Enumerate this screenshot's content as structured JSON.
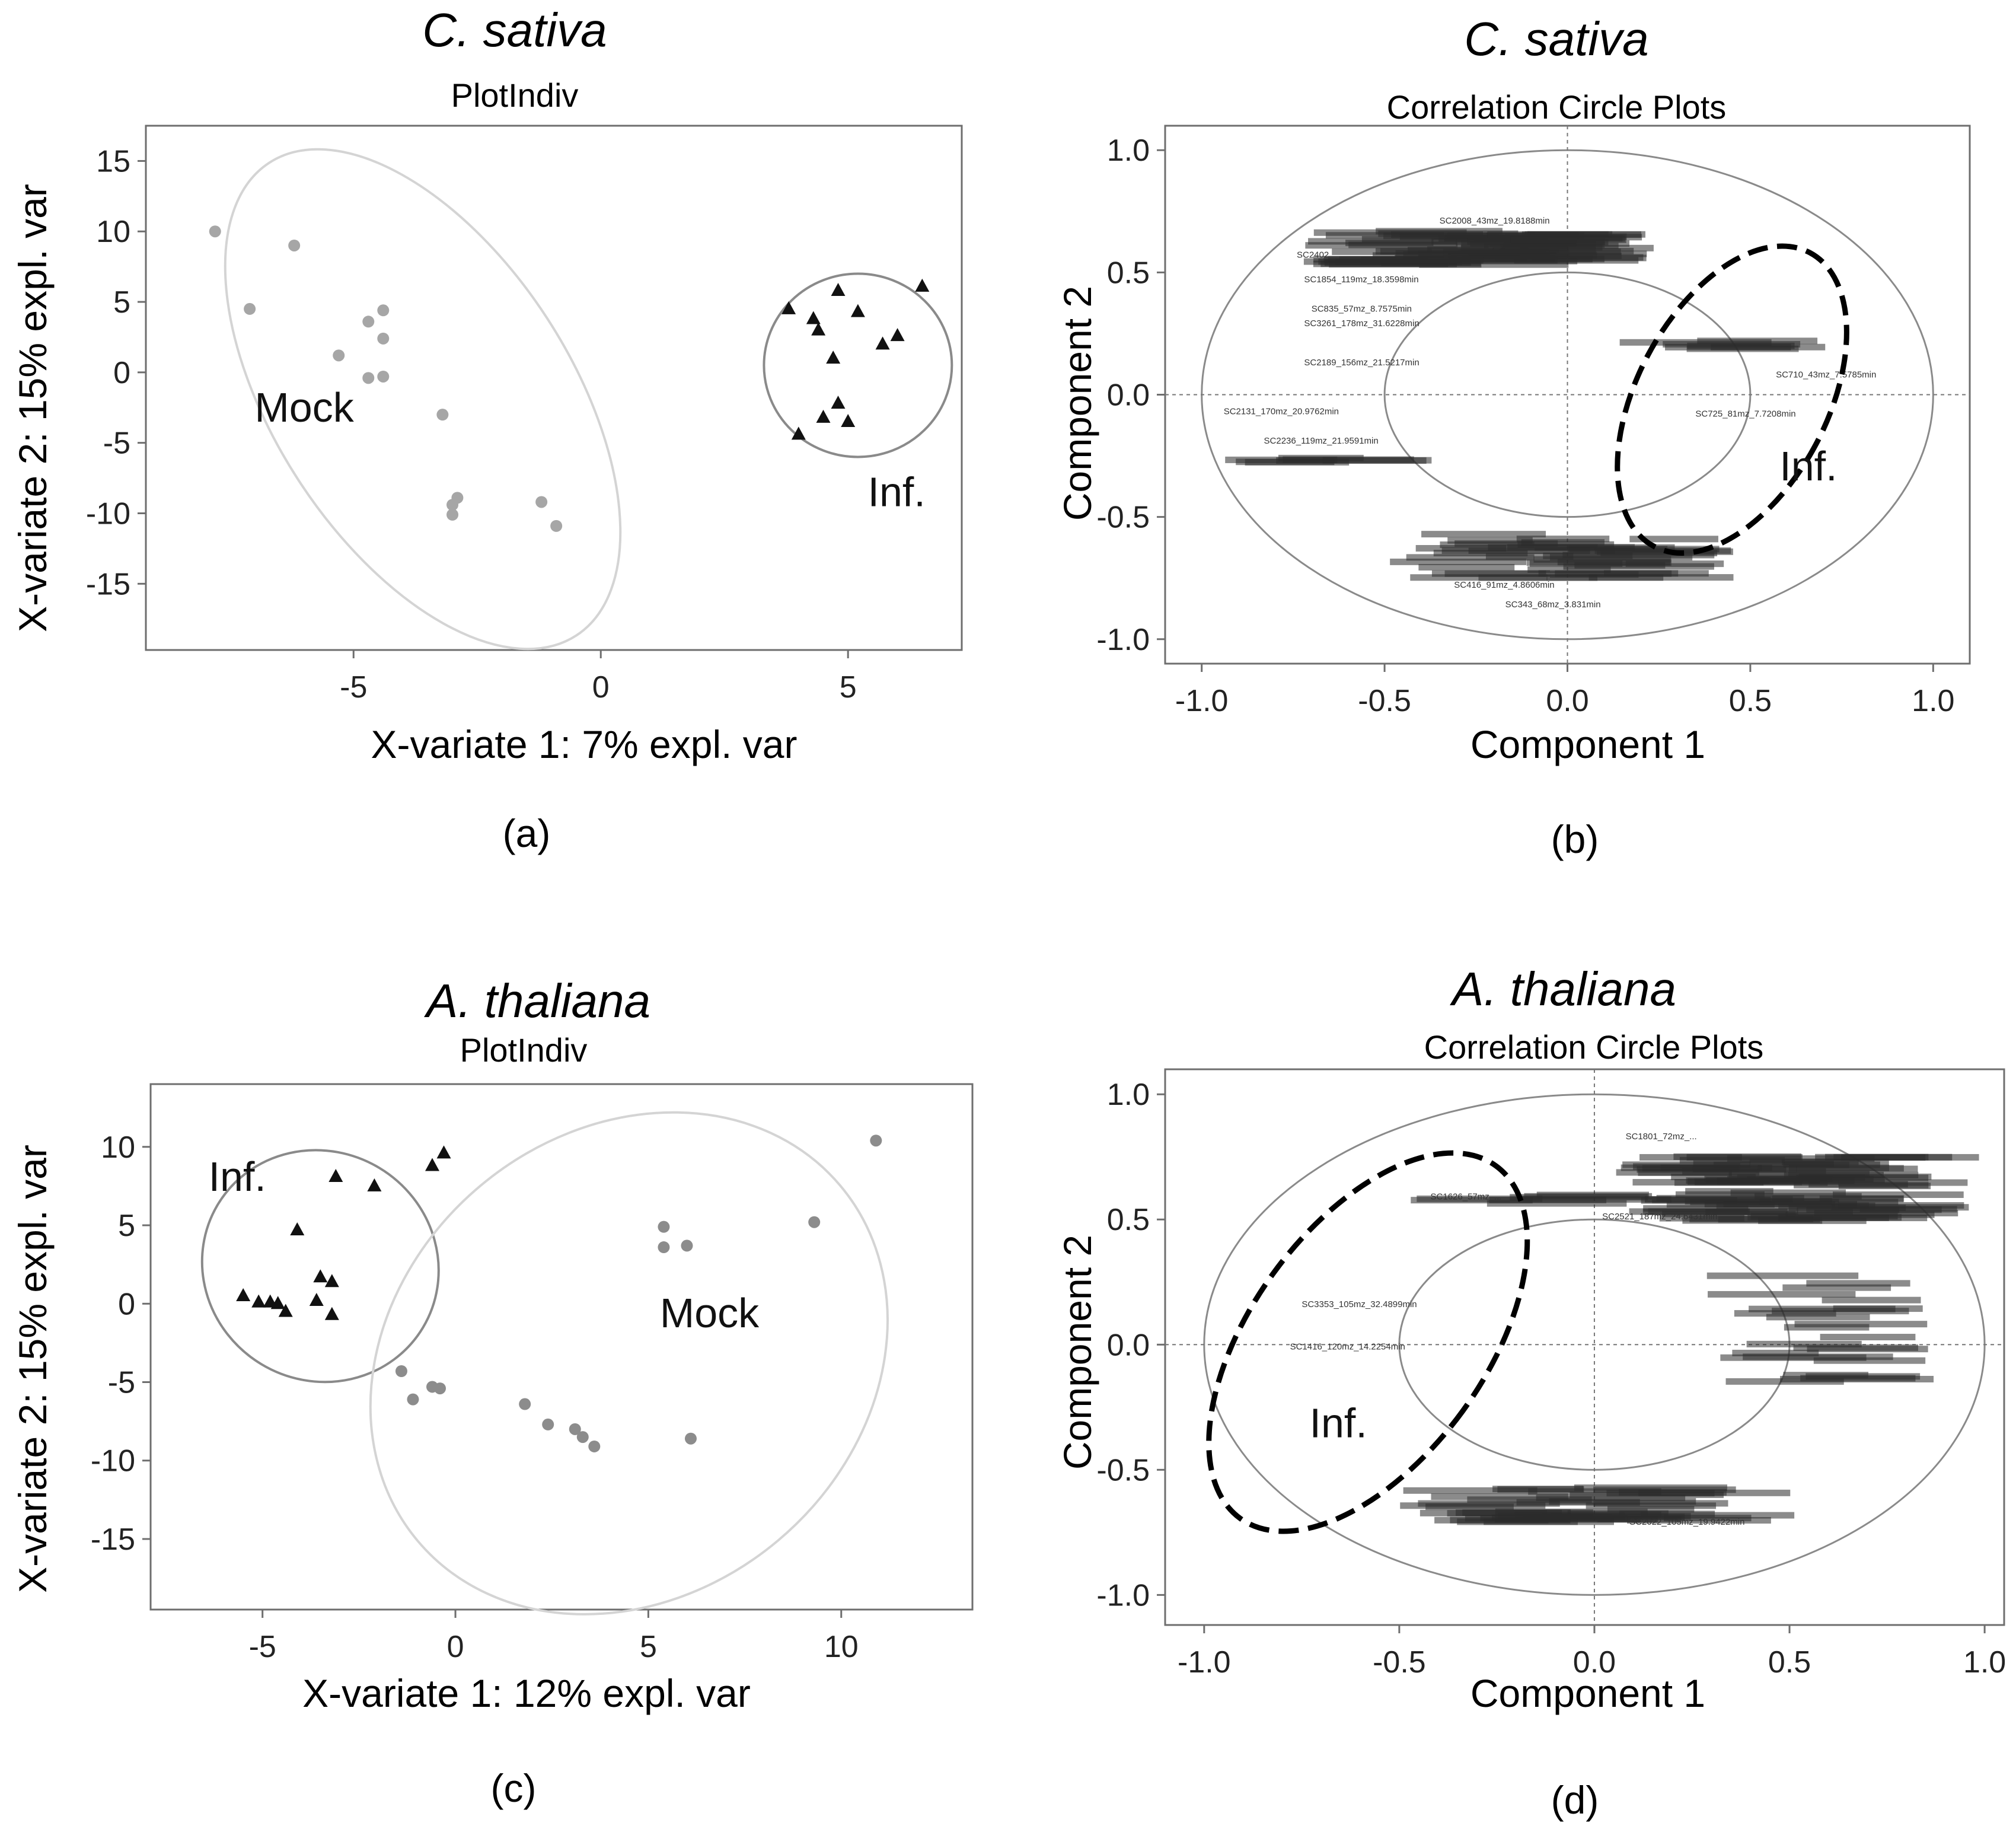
{
  "figure": {
    "background": "#ffffff"
  },
  "chart_data": [
    {
      "id": "a",
      "type": "scatter",
      "species": "C. sativa",
      "title": "PlotIndiv",
      "xlabel": "X-variate 1: 7% expl. var",
      "ylabel": "X-variate 2: 15% expl. var",
      "panel_label": "(a)",
      "xlim": [
        -9.2,
        7.3
      ],
      "ylim": [
        -19.7,
        17.5
      ],
      "x_ticks": [
        -5,
        0,
        5
      ],
      "y_ticks": [
        15,
        10,
        5,
        0,
        -5,
        -10,
        -15
      ],
      "series": [
        {
          "name": "Mock",
          "marker": "circle",
          "color": "#a6a6a6",
          "points": [
            [
              -7.8,
              10.0
            ],
            [
              -6.2,
              9.0
            ],
            [
              -7.1,
              4.5
            ],
            [
              -4.7,
              3.6
            ],
            [
              -4.4,
              4.4
            ],
            [
              -4.4,
              2.4
            ],
            [
              -5.3,
              1.2
            ],
            [
              -4.7,
              -0.4
            ],
            [
              -4.4,
              -0.3
            ],
            [
              -3.2,
              -3.0
            ],
            [
              -2.9,
              -8.9
            ],
            [
              -3.0,
              -9.4
            ],
            [
              -3.0,
              -10.1
            ],
            [
              -1.2,
              -9.2
            ],
            [
              -0.9,
              -10.9
            ]
          ]
        },
        {
          "name": "Inf.",
          "marker": "triangle",
          "color": "#111111",
          "points": [
            [
              3.8,
              4.5
            ],
            [
              4.3,
              3.8
            ],
            [
              4.4,
              3.0
            ],
            [
              4.8,
              5.8
            ],
            [
              5.2,
              4.3
            ],
            [
              6.5,
              6.1
            ],
            [
              6.0,
              2.6
            ],
            [
              5.7,
              2.0
            ],
            [
              4.7,
              1.0
            ],
            [
              4.8,
              -2.2
            ],
            [
              4.5,
              -3.2
            ],
            [
              5.0,
              -3.5
            ],
            [
              4.0,
              -4.4
            ]
          ]
        }
      ],
      "annotations": [
        {
          "text": "Mock",
          "x": -7.0,
          "y": -3.5
        },
        {
          "text": "Inf.",
          "x": 5.4,
          "y": -9.5
        }
      ],
      "ellipses": [
        {
          "group": "Mock",
          "center": [
            -3.6,
            -1.9
          ],
          "semi_axes": [
            3.0,
            20.0
          ],
          "rotation_deg": -33,
          "stroke": "#d4d4d4",
          "dashed": false
        },
        {
          "group": "Inf.",
          "center": [
            5.2,
            0.5
          ],
          "semi_axes": [
            1.9,
            6.5
          ],
          "rotation_deg": 0,
          "stroke": "#8a8a8a",
          "dashed": false
        }
      ]
    },
    {
      "id": "b",
      "type": "scatter",
      "species": "C. sativa",
      "title": "Correlation Circle Plots",
      "xlabel": "Component 1",
      "ylabel": "Component 2",
      "panel_label": "(b)",
      "xlim": [
        -1.1,
        1.1
      ],
      "ylim": [
        -1.1,
        1.1
      ],
      "x_ticks": [
        "-1.0",
        "-0.5",
        "0.0",
        "0.5",
        "1.0"
      ],
      "y_ticks": [
        "1.0",
        "0.5",
        "0.0",
        "-0.5",
        "-1.0"
      ],
      "circles": [
        1.0,
        0.5
      ],
      "variable_labels": [
        {
          "text": "SC2008_43mz_19.8188min",
          "x": -0.35,
          "y": 0.7
        },
        {
          "text": "SC2402",
          "x": -0.74,
          "y": 0.56
        },
        {
          "text": "SC1854_119mz_18.3598min",
          "x": -0.72,
          "y": 0.46
        },
        {
          "text": "SC835_57mz_8.7575min",
          "x": -0.7,
          "y": 0.34
        },
        {
          "text": "SC3261_178mz_31.6228min",
          "x": -0.72,
          "y": 0.28
        },
        {
          "text": "SC2189_156mz_21.5217min",
          "x": -0.72,
          "y": 0.12
        },
        {
          "text": "SC2131_170mz_20.9762min",
          "x": -0.94,
          "y": -0.08
        },
        {
          "text": "SC2236_119mz_21.9591min",
          "x": -0.83,
          "y": -0.2
        },
        {
          "text": "SC710_43mz_7.5785min",
          "x": 0.57,
          "y": 0.07
        },
        {
          "text": "SC725_81mz_7.7208min",
          "x": 0.35,
          "y": -0.09
        },
        {
          "text": "SC416_91mz_4.8606min",
          "x": -0.31,
          "y": -0.79
        },
        {
          "text": "SC343_68mz_3.831min",
          "x": -0.17,
          "y": -0.87
        }
      ],
      "variable_clusters": [
        {
          "center": [
            -0.22,
            0.6
          ],
          "spread": [
            0.3,
            0.07
          ],
          "count": 80
        },
        {
          "center": [
            -0.66,
            -0.27
          ],
          "spread": [
            0.14,
            0.01
          ],
          "count": 7
        },
        {
          "center": [
            0.45,
            0.2
          ],
          "spread": [
            0.1,
            0.02
          ],
          "count": 7
        },
        {
          "center": [
            0.0,
            -0.66
          ],
          "spread": [
            0.3,
            0.09
          ],
          "count": 45
        }
      ],
      "annotations": [
        {
          "text": "Inf.",
          "x": 0.58,
          "y": -0.35
        }
      ],
      "ellipses": [
        {
          "group": "Inf.",
          "center": [
            0.45,
            -0.02
          ],
          "semi_axes": [
            0.26,
            0.68
          ],
          "rotation_deg": 28,
          "stroke": "#000000",
          "dashed": true
        }
      ]
    },
    {
      "id": "c",
      "type": "scatter",
      "species": "A. thaliana",
      "title": "PlotIndiv",
      "xlabel": "X-variate 1: 12% expl. var",
      "ylabel": "X-variate 2: 15% expl. var",
      "panel_label": "(c)",
      "xlim": [
        -7.9,
        13.4
      ],
      "ylim": [
        -19.5,
        14.0
      ],
      "x_ticks": [
        -5,
        0,
        5,
        10
      ],
      "y_ticks": [
        10,
        5,
        0,
        -5,
        -10,
        -15
      ],
      "series": [
        {
          "name": "Inf.",
          "marker": "triangle",
          "color": "#111111",
          "points": [
            [
              -0.3,
              9.6
            ],
            [
              -0.6,
              8.8
            ],
            [
              -2.1,
              7.5
            ],
            [
              -3.1,
              8.1
            ],
            [
              -4.1,
              4.7
            ],
            [
              -3.5,
              1.7
            ],
            [
              -3.2,
              1.4
            ],
            [
              -3.6,
              0.2
            ],
            [
              -3.2,
              -0.7
            ],
            [
              -5.5,
              0.5
            ],
            [
              -5.1,
              0.1
            ],
            [
              -4.8,
              0.1
            ],
            [
              -4.6,
              0.0
            ],
            [
              -4.4,
              -0.5
            ]
          ]
        },
        {
          "name": "Mock",
          "marker": "circle",
          "color": "#8c8c8c",
          "points": [
            [
              10.9,
              10.4
            ],
            [
              9.3,
              5.2
            ],
            [
              5.4,
              4.9
            ],
            [
              5.4,
              3.6
            ],
            [
              6.0,
              3.7
            ],
            [
              -1.4,
              -4.3
            ],
            [
              -0.6,
              -5.3
            ],
            [
              -0.4,
              -5.4
            ],
            [
              -1.1,
              -6.1
            ],
            [
              1.8,
              -6.4
            ],
            [
              2.4,
              -7.7
            ],
            [
              3.1,
              -8.0
            ],
            [
              3.3,
              -8.5
            ],
            [
              3.6,
              -9.1
            ],
            [
              6.1,
              -8.6
            ]
          ]
        }
      ],
      "annotations": [
        {
          "text": "Inf.",
          "x": -6.4,
          "y": 7.2
        },
        {
          "text": "Mock",
          "x": 5.3,
          "y": -1.5
        }
      ],
      "ellipses": [
        {
          "group": "Inf.",
          "center": [
            -3.5,
            2.4
          ],
          "semi_axes": [
            3.1,
            7.3
          ],
          "rotation_deg": 31,
          "stroke": "#8a8a8a",
          "dashed": false
        },
        {
          "group": "Mock",
          "center": [
            4.5,
            -3.8
          ],
          "semi_axes": [
            6.0,
            17.6
          ],
          "rotation_deg": 50,
          "stroke": "#d4d4d4",
          "dashed": false
        }
      ]
    },
    {
      "id": "d",
      "type": "scatter",
      "species": "A. thaliana",
      "title": "Correlation Circle Plots",
      "xlabel": "Component 1",
      "ylabel": "Component 2",
      "panel_label": "(d)",
      "xlim": [
        -1.1,
        1.05
      ],
      "ylim": [
        -1.12,
        1.1
      ],
      "x_ticks": [
        "-1.0",
        "-0.5",
        "0.0",
        "0.5",
        "1.0"
      ],
      "y_ticks": [
        "1.0",
        "0.5",
        "0.0",
        "-0.5",
        "-1.0"
      ],
      "circles": [
        1.0,
        0.5
      ],
      "variable_labels": [
        {
          "text": "SC1626_57mz_...",
          "x": -0.42,
          "y": 0.58
        },
        {
          "text": "SC3353_105mz_32.4899min",
          "x": -0.75,
          "y": 0.15
        },
        {
          "text": "SC1416_120mz_14.2254min",
          "x": -0.78,
          "y": -0.02
        },
        {
          "text": "SC2521_187mz_24.6431min",
          "x": 0.02,
          "y": 0.5
        },
        {
          "text": "SC2022_105mz_19.9422min",
          "x": 0.09,
          "y": -0.72
        },
        {
          "text": "SC1801_72mz_...",
          "x": 0.08,
          "y": 0.82
        }
      ],
      "variable_clusters": [
        {
          "center": [
            0.52,
            0.62
          ],
          "spread": [
            0.3,
            0.13
          ],
          "count": 90
        },
        {
          "center": [
            0.6,
            0.06
          ],
          "spread": [
            0.14,
            0.22
          ],
          "count": 25
        },
        {
          "center": [
            -0.14,
            0.58
          ],
          "spread": [
            0.18,
            0.02
          ],
          "count": 8
        },
        {
          "center": [
            0.0,
            -0.64
          ],
          "spread": [
            0.32,
            0.07
          ],
          "count": 45
        }
      ],
      "annotations": [
        {
          "text": "Inf.",
          "x": -0.73,
          "y": -0.37
        }
      ],
      "ellipses": [
        {
          "group": "Inf.",
          "center": [
            -0.58,
            0.01
          ],
          "semi_axes": [
            0.3,
            0.87
          ],
          "rotation_deg": 36,
          "stroke": "#000000",
          "dashed": true
        }
      ]
    }
  ]
}
